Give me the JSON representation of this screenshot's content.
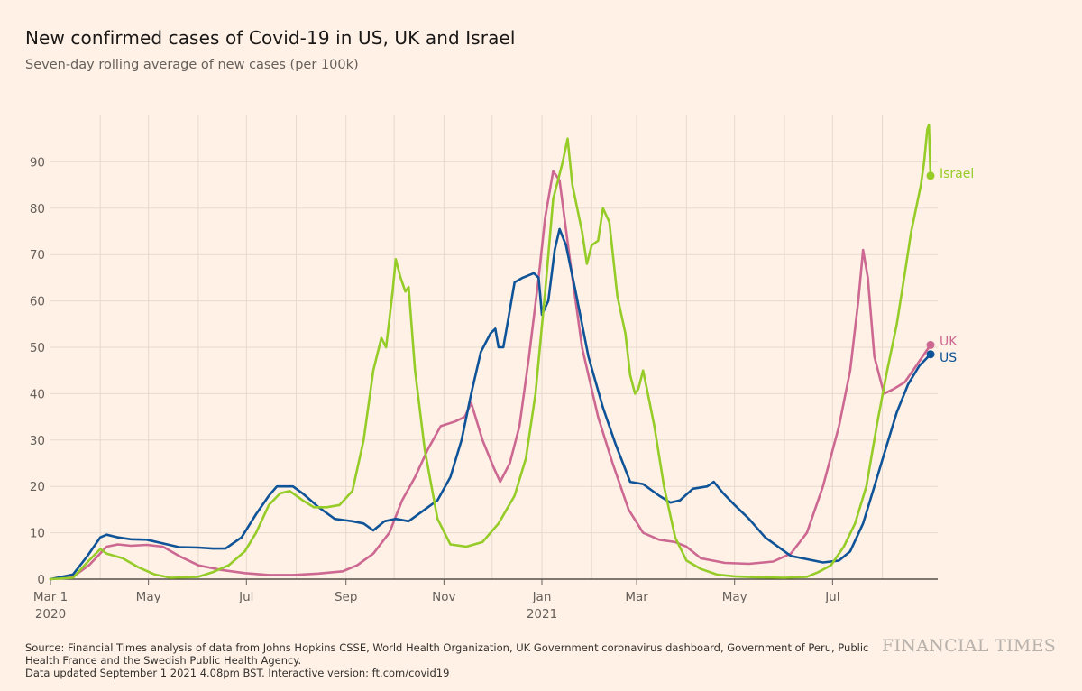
{
  "title": "New confirmed cases of Covid-19 in US, UK and Israel",
  "subtitle": "Seven-day rolling average of new cases (per 100k)",
  "footer": {
    "source": "Source: Financial Times analysis of data from Johns Hopkins CSSE, World Health Organization, UK Government coronavirus dashboard, Government of Peru, Public Health France and the Swedish Public Health Agency.",
    "updated": "Data updated September 1 2021 4.08pm BST. Interactive version: ft.com/covid19"
  },
  "brand": "FINANCIAL TIMES",
  "chart_data": {
    "type": "line",
    "title": "New confirmed cases of Covid-19 in US, UK and Israel",
    "subtitle": "Seven-day rolling average of new cases (per 100k)",
    "x_unit": "date",
    "xlim": [
      "2020-03-01",
      "2021-08-31"
    ],
    "ylim": [
      0,
      100
    ],
    "yticks": [
      0,
      10,
      20,
      30,
      40,
      50,
      60,
      70,
      80,
      90
    ],
    "xticks": [
      {
        "date": "2020-03-01",
        "label": "Mar 1",
        "sublabel": "2020"
      },
      {
        "date": "2020-05-01",
        "label": "May",
        "sublabel": ""
      },
      {
        "date": "2020-07-01",
        "label": "Jul",
        "sublabel": ""
      },
      {
        "date": "2020-09-01",
        "label": "Sep",
        "sublabel": ""
      },
      {
        "date": "2020-11-01",
        "label": "Nov",
        "sublabel": ""
      },
      {
        "date": "2021-01-01",
        "label": "Jan",
        "sublabel": "2021"
      },
      {
        "date": "2021-03-01",
        "label": "Mar",
        "sublabel": ""
      },
      {
        "date": "2021-05-01",
        "label": "May",
        "sublabel": ""
      },
      {
        "date": "2021-07-01",
        "label": "Jul",
        "sublabel": ""
      }
    ],
    "grid": true,
    "series": [
      {
        "name": "US",
        "color": "#0f5499",
        "last_value": 48.5,
        "points": [
          [
            "2020-03-01",
            0
          ],
          [
            "2020-03-15",
            1
          ],
          [
            "2020-03-24",
            5
          ],
          [
            "2020-04-01",
            9
          ],
          [
            "2020-04-05",
            9.6
          ],
          [
            "2020-04-12",
            9
          ],
          [
            "2020-04-20",
            8.6
          ],
          [
            "2020-04-30",
            8.5
          ],
          [
            "2020-05-10",
            7.7
          ],
          [
            "2020-05-20",
            6.9
          ],
          [
            "2020-06-01",
            6.8
          ],
          [
            "2020-06-10",
            6.6
          ],
          [
            "2020-06-18",
            6.6
          ],
          [
            "2020-06-28",
            9
          ],
          [
            "2020-07-07",
            14
          ],
          [
            "2020-07-15",
            18
          ],
          [
            "2020-07-20",
            20
          ],
          [
            "2020-07-30",
            20
          ],
          [
            "2020-08-05",
            18.5
          ],
          [
            "2020-08-15",
            15.5
          ],
          [
            "2020-08-25",
            13
          ],
          [
            "2020-09-05",
            12.5
          ],
          [
            "2020-09-12",
            12
          ],
          [
            "2020-09-18",
            10.5
          ],
          [
            "2020-09-25",
            12.5
          ],
          [
            "2020-10-02",
            13
          ],
          [
            "2020-10-10",
            12.5
          ],
          [
            "2020-10-20",
            15
          ],
          [
            "2020-10-28",
            17
          ],
          [
            "2020-11-05",
            22
          ],
          [
            "2020-11-12",
            30
          ],
          [
            "2020-11-18",
            40
          ],
          [
            "2020-11-24",
            49
          ],
          [
            "2020-11-30",
            53
          ],
          [
            "2020-12-03",
            54
          ],
          [
            "2020-12-05",
            50
          ],
          [
            "2020-12-08",
            50
          ],
          [
            "2020-12-11",
            56
          ],
          [
            "2020-12-15",
            64
          ],
          [
            "2020-12-20",
            65
          ],
          [
            "2020-12-27",
            66
          ],
          [
            "2020-12-30",
            65
          ],
          [
            "2021-01-01",
            57
          ],
          [
            "2021-01-05",
            60
          ],
          [
            "2021-01-09",
            71
          ],
          [
            "2021-01-12",
            75.5
          ],
          [
            "2021-01-16",
            72
          ],
          [
            "2021-01-22",
            62
          ],
          [
            "2021-01-30",
            48
          ],
          [
            "2021-02-08",
            37
          ],
          [
            "2021-02-16",
            29
          ],
          [
            "2021-02-25",
            21
          ],
          [
            "2021-03-05",
            20.5
          ],
          [
            "2021-03-15",
            18
          ],
          [
            "2021-03-22",
            16.5
          ],
          [
            "2021-03-28",
            17
          ],
          [
            "2021-04-05",
            19.5
          ],
          [
            "2021-04-14",
            20
          ],
          [
            "2021-04-18",
            21
          ],
          [
            "2021-04-24",
            18.5
          ],
          [
            "2021-05-01",
            16
          ],
          [
            "2021-05-10",
            13
          ],
          [
            "2021-05-20",
            9
          ],
          [
            "2021-05-30",
            6.5
          ],
          [
            "2021-06-05",
            5
          ],
          [
            "2021-06-15",
            4.3
          ],
          [
            "2021-06-25",
            3.6
          ],
          [
            "2021-07-05",
            4
          ],
          [
            "2021-07-12",
            6
          ],
          [
            "2021-07-20",
            12
          ],
          [
            "2021-07-27",
            20
          ],
          [
            "2021-08-03",
            28
          ],
          [
            "2021-08-10",
            36
          ],
          [
            "2021-08-17",
            42
          ],
          [
            "2021-08-24",
            46
          ],
          [
            "2021-08-31",
            48.5
          ]
        ]
      },
      {
        "name": "UK",
        "color": "#cc6891",
        "last_value": 50.5,
        "points": [
          [
            "2020-03-01",
            0
          ],
          [
            "2020-03-15",
            0.5
          ],
          [
            "2020-03-25",
            3
          ],
          [
            "2020-04-05",
            7
          ],
          [
            "2020-04-12",
            7.5
          ],
          [
            "2020-04-20",
            7.2
          ],
          [
            "2020-04-30",
            7.4
          ],
          [
            "2020-05-10",
            7
          ],
          [
            "2020-05-20",
            5
          ],
          [
            "2020-06-01",
            3
          ],
          [
            "2020-06-15",
            2
          ],
          [
            "2020-06-30",
            1.3
          ],
          [
            "2020-07-15",
            0.9
          ],
          [
            "2020-07-30",
            0.9
          ],
          [
            "2020-08-15",
            1.2
          ],
          [
            "2020-08-30",
            1.7
          ],
          [
            "2020-09-08",
            3
          ],
          [
            "2020-09-18",
            5.5
          ],
          [
            "2020-09-28",
            10
          ],
          [
            "2020-10-06",
            17
          ],
          [
            "2020-10-14",
            22
          ],
          [
            "2020-10-22",
            28
          ],
          [
            "2020-10-30",
            33
          ],
          [
            "2020-11-08",
            34
          ],
          [
            "2020-11-14",
            35
          ],
          [
            "2020-11-18",
            38
          ],
          [
            "2020-11-25",
            30
          ],
          [
            "2020-12-02",
            24
          ],
          [
            "2020-12-06",
            21
          ],
          [
            "2020-12-12",
            25
          ],
          [
            "2020-12-18",
            33
          ],
          [
            "2020-12-24",
            48
          ],
          [
            "2020-12-30",
            65
          ],
          [
            "2021-01-03",
            78
          ],
          [
            "2021-01-08",
            88
          ],
          [
            "2021-01-12",
            86
          ],
          [
            "2021-01-18",
            70
          ],
          [
            "2021-01-26",
            50
          ],
          [
            "2021-02-05",
            35
          ],
          [
            "2021-02-14",
            25
          ],
          [
            "2021-02-24",
            15
          ],
          [
            "2021-03-05",
            10
          ],
          [
            "2021-03-15",
            8.5
          ],
          [
            "2021-03-25",
            8
          ],
          [
            "2021-04-01",
            7
          ],
          [
            "2021-04-10",
            4.5
          ],
          [
            "2021-04-25",
            3.5
          ],
          [
            "2021-05-10",
            3.3
          ],
          [
            "2021-05-25",
            3.8
          ],
          [
            "2021-06-05",
            5.5
          ],
          [
            "2021-06-15",
            10
          ],
          [
            "2021-06-25",
            20
          ],
          [
            "2021-07-05",
            33
          ],
          [
            "2021-07-12",
            45
          ],
          [
            "2021-07-17",
            60
          ],
          [
            "2021-07-20",
            71
          ],
          [
            "2021-07-23",
            65
          ],
          [
            "2021-07-27",
            48
          ],
          [
            "2021-08-02",
            40
          ],
          [
            "2021-08-08",
            41
          ],
          [
            "2021-08-15",
            42.5
          ],
          [
            "2021-08-22",
            46
          ],
          [
            "2021-08-31",
            50.5
          ]
        ]
      },
      {
        "name": "Israel",
        "color": "#96cc28",
        "last_value": 87,
        "points": [
          [
            "2020-03-01",
            0
          ],
          [
            "2020-03-15",
            0.3
          ],
          [
            "2020-03-25",
            4
          ],
          [
            "2020-04-01",
            6.5
          ],
          [
            "2020-04-05",
            5.5
          ],
          [
            "2020-04-15",
            4.5
          ],
          [
            "2020-04-25",
            2.5
          ],
          [
            "2020-05-05",
            1
          ],
          [
            "2020-05-15",
            0.3
          ],
          [
            "2020-06-01",
            0.5
          ],
          [
            "2020-06-10",
            1.5
          ],
          [
            "2020-06-20",
            3
          ],
          [
            "2020-06-30",
            6
          ],
          [
            "2020-07-07",
            10
          ],
          [
            "2020-07-15",
            16
          ],
          [
            "2020-07-22",
            18.5
          ],
          [
            "2020-07-28",
            19
          ],
          [
            "2020-08-05",
            17
          ],
          [
            "2020-08-12",
            15.5
          ],
          [
            "2020-08-20",
            15.5
          ],
          [
            "2020-08-28",
            16
          ],
          [
            "2020-09-05",
            19
          ],
          [
            "2020-09-12",
            30
          ],
          [
            "2020-09-18",
            45
          ],
          [
            "2020-09-23",
            52
          ],
          [
            "2020-09-26",
            50
          ],
          [
            "2020-09-30",
            62
          ],
          [
            "2020-10-02",
            69
          ],
          [
            "2020-10-05",
            65
          ],
          [
            "2020-10-08",
            62
          ],
          [
            "2020-10-10",
            63
          ],
          [
            "2020-10-14",
            45
          ],
          [
            "2020-10-20",
            28
          ],
          [
            "2020-10-28",
            13
          ],
          [
            "2020-11-05",
            7.5
          ],
          [
            "2020-11-15",
            7
          ],
          [
            "2020-11-25",
            8
          ],
          [
            "2020-12-05",
            12
          ],
          [
            "2020-12-15",
            18
          ],
          [
            "2020-12-22",
            26
          ],
          [
            "2020-12-28",
            40
          ],
          [
            "2021-01-03",
            62
          ],
          [
            "2021-01-08",
            82
          ],
          [
            "2021-01-14",
            90
          ],
          [
            "2021-01-17",
            95
          ],
          [
            "2021-01-20",
            85
          ],
          [
            "2021-01-26",
            75
          ],
          [
            "2021-01-29",
            68
          ],
          [
            "2021-02-01",
            72
          ],
          [
            "2021-02-05",
            73
          ],
          [
            "2021-02-08",
            80
          ],
          [
            "2021-02-12",
            77
          ],
          [
            "2021-02-17",
            61
          ],
          [
            "2021-02-22",
            53
          ],
          [
            "2021-02-25",
            44
          ],
          [
            "2021-02-28",
            40
          ],
          [
            "2021-03-02",
            41
          ],
          [
            "2021-03-05",
            45
          ],
          [
            "2021-03-08",
            40
          ],
          [
            "2021-03-12",
            33
          ],
          [
            "2021-03-18",
            20
          ],
          [
            "2021-03-25",
            9
          ],
          [
            "2021-04-01",
            4
          ],
          [
            "2021-04-10",
            2.2
          ],
          [
            "2021-04-20",
            1
          ],
          [
            "2021-05-01",
            0.6
          ],
          [
            "2021-05-15",
            0.4
          ],
          [
            "2021-06-01",
            0.3
          ],
          [
            "2021-06-15",
            0.5
          ],
          [
            "2021-06-22",
            1.5
          ],
          [
            "2021-06-30",
            3
          ],
          [
            "2021-07-08",
            7
          ],
          [
            "2021-07-15",
            12
          ],
          [
            "2021-07-22",
            20
          ],
          [
            "2021-07-29",
            34
          ],
          [
            "2021-08-04",
            45
          ],
          [
            "2021-08-10",
            55
          ],
          [
            "2021-08-15",
            66
          ],
          [
            "2021-08-19",
            75
          ],
          [
            "2021-08-22",
            80
          ],
          [
            "2021-08-25",
            85
          ],
          [
            "2021-08-27",
            90
          ],
          [
            "2021-08-29",
            97
          ],
          [
            "2021-08-30",
            98
          ],
          [
            "2021-08-31",
            87
          ]
        ]
      }
    ]
  }
}
